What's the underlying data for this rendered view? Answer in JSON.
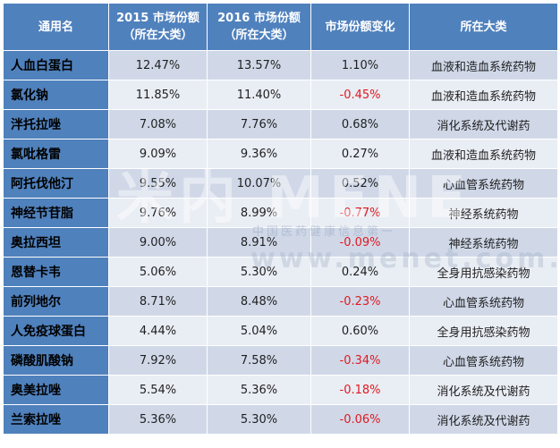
{
  "headers": [
    "通用名",
    "2015 市场份额（所在大类）",
    "2016 市场份额（所在大类）",
    "市场份额变化",
    "所在大类"
  ],
  "rows": [
    {
      "name": "人血白蛋白",
      "y2015": "12.47%",
      "y2016": "13.57%",
      "change": "1.10%",
      "category": "血液和造血系统药物",
      "negative": false
    },
    {
      "name": "氯化钠",
      "y2015": "11.85%",
      "y2016": "11.40%",
      "change": "-0.45%",
      "category": "血液和造血系统药物",
      "negative": true
    },
    {
      "name": "泮托拉唑",
      "y2015": "7.08%",
      "y2016": "7.76%",
      "change": "0.68%",
      "category": "消化系统及代谢药",
      "negative": false
    },
    {
      "name": "氯吡格雷",
      "y2015": "9.09%",
      "y2016": "9.36%",
      "change": "0.27%",
      "category": "血液和造血系统药物",
      "negative": false
    },
    {
      "name": "阿托伐他汀",
      "y2015": "9.55%",
      "y2016": "10.07%",
      "change": "0.52%",
      "category": "心血管系统药物",
      "negative": false
    },
    {
      "name": "神经节苷脂",
      "y2015": "9.76%",
      "y2016": "8.99%",
      "change": "-0.77%",
      "category": "神经系统药物",
      "negative": true
    },
    {
      "name": "奥拉西坦",
      "y2015": "9.00%",
      "y2016": "8.91%",
      "change": "-0.09%",
      "category": "神经系统药物",
      "negative": true
    },
    {
      "name": "恩替卡韦",
      "y2015": "5.06%",
      "y2016": "5.30%",
      "change": "0.24%",
      "category": "全身用抗感染药物",
      "negative": false
    },
    {
      "name": "前列地尔",
      "y2015": "8.71%",
      "y2016": "8.48%",
      "change": "-0.23%",
      "category": "心血管系统药物",
      "negative": true
    },
    {
      "name": "人免疫球蛋白",
      "y2015": "4.44%",
      "y2016": "5.04%",
      "change": "0.60%",
      "category": "全身用抗感染药物",
      "negative": false
    },
    {
      "name": "磷酸肌酸钠",
      "y2015": "7.92%",
      "y2016": "7.58%",
      "change": "-0.34%",
      "category": "心血管系统药物",
      "negative": true
    },
    {
      "name": "奥美拉唑",
      "y2015": "5.54%",
      "y2016": "5.36%",
      "change": "-0.18%",
      "category": "消化系统及代谢药",
      "negative": true
    },
    {
      "name": "兰索拉唑",
      "y2015": "5.36%",
      "y2016": "5.30%",
      "change": "-0.06%",
      "category": "消化系统及代谢药",
      "negative": true
    }
  ],
  "watermark": {
    "big": "米内 MENE",
    "cn": "中国医药健康信息第一",
    "url": "www.menet.com.cn"
  },
  "colors": {
    "header": "#4f81bd",
    "row_odd": "#d0d8e8",
    "row_even": "#e9edf4",
    "negative": "#e0191f"
  }
}
